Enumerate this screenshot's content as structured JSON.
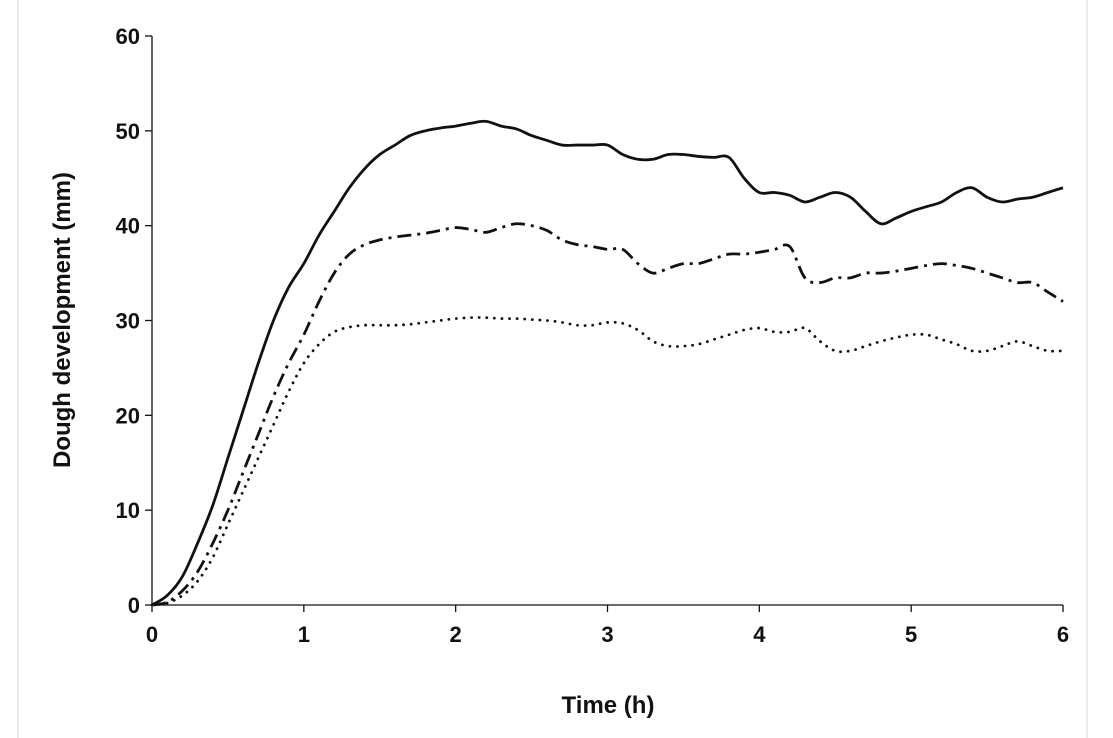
{
  "chart_data": {
    "type": "line",
    "title": "",
    "xlabel": "Time (h)",
    "ylabel": "Dough development (mm)",
    "xlim": [
      0,
      6
    ],
    "ylim": [
      0,
      60
    ],
    "x_ticks": [
      0,
      1,
      2,
      3,
      4,
      5,
      6
    ],
    "y_ticks": [
      0,
      10,
      20,
      30,
      40,
      50,
      60
    ],
    "grid": false,
    "legend": "none",
    "series": [
      {
        "name": "solid",
        "style": "solid",
        "color": "#111111",
        "x": [
          0,
          0.1,
          0.2,
          0.3,
          0.4,
          0.5,
          0.6,
          0.7,
          0.8,
          0.9,
          1.0,
          1.1,
          1.2,
          1.3,
          1.4,
          1.5,
          1.6,
          1.7,
          1.8,
          1.9,
          2.0,
          2.1,
          2.2,
          2.3,
          2.4,
          2.5,
          2.6,
          2.7,
          2.8,
          2.9,
          3.0,
          3.1,
          3.2,
          3.3,
          3.4,
          3.5,
          3.6,
          3.7,
          3.8,
          3.9,
          4.0,
          4.1,
          4.2,
          4.3,
          4.4,
          4.5,
          4.6,
          4.7,
          4.8,
          4.9,
          5.0,
          5.1,
          5.2,
          5.3,
          5.4,
          5.5,
          5.6,
          5.7,
          5.8,
          5.9,
          6.0
        ],
        "y": [
          0,
          1.0,
          3.0,
          6.5,
          10.5,
          15.5,
          20.5,
          25.5,
          30.0,
          33.5,
          36.0,
          39.0,
          41.5,
          44.0,
          46.0,
          47.5,
          48.5,
          49.5,
          50.0,
          50.3,
          50.5,
          50.8,
          51.0,
          50.5,
          50.2,
          49.5,
          49.0,
          48.5,
          48.5,
          48.5,
          48.5,
          47.5,
          47.0,
          47.0,
          47.5,
          47.5,
          47.3,
          47.2,
          47.2,
          45.0,
          43.5,
          43.5,
          43.2,
          42.5,
          43.0,
          43.5,
          43.0,
          41.5,
          40.2,
          40.8,
          41.5,
          42.0,
          42.5,
          43.5,
          44.0,
          43.0,
          42.5,
          42.8,
          43.0,
          43.5,
          44.0
        ]
      },
      {
        "name": "dash-dot",
        "style": "dash-dot",
        "color": "#111111",
        "x": [
          0,
          0.1,
          0.2,
          0.3,
          0.4,
          0.5,
          0.6,
          0.7,
          0.8,
          0.9,
          1.0,
          1.1,
          1.2,
          1.3,
          1.4,
          1.5,
          1.6,
          1.7,
          1.8,
          1.9,
          2.0,
          2.1,
          2.2,
          2.3,
          2.4,
          2.5,
          2.6,
          2.7,
          2.8,
          2.9,
          3.0,
          3.1,
          3.2,
          3.3,
          3.4,
          3.5,
          3.6,
          3.7,
          3.8,
          3.9,
          4.0,
          4.1,
          4.2,
          4.3,
          4.4,
          4.5,
          4.6,
          4.7,
          4.8,
          4.9,
          5.0,
          5.1,
          5.2,
          5.3,
          5.4,
          5.5,
          5.6,
          5.7,
          5.8,
          5.9,
          6.0
        ],
        "y": [
          0,
          0.3,
          1.5,
          3.5,
          6.5,
          10.0,
          14.0,
          18.0,
          22.0,
          25.5,
          28.5,
          32.0,
          35.0,
          37.0,
          38.0,
          38.5,
          38.8,
          39.0,
          39.2,
          39.5,
          39.8,
          39.6,
          39.3,
          39.8,
          40.2,
          40.0,
          39.5,
          38.5,
          38.0,
          37.8,
          37.5,
          37.5,
          36.0,
          35.0,
          35.5,
          36.0,
          36.0,
          36.5,
          37.0,
          37.0,
          37.2,
          37.5,
          37.8,
          34.5,
          34.0,
          34.5,
          34.5,
          35.0,
          35.0,
          35.2,
          35.5,
          35.8,
          36.0,
          35.8,
          35.5,
          35.0,
          34.5,
          34.0,
          34.0,
          33.0,
          32.0
        ]
      },
      {
        "name": "dotted",
        "style": "dotted",
        "color": "#111111",
        "x": [
          0,
          0.1,
          0.2,
          0.3,
          0.4,
          0.5,
          0.6,
          0.7,
          0.8,
          0.9,
          1.0,
          1.1,
          1.2,
          1.3,
          1.4,
          1.5,
          1.6,
          1.7,
          1.8,
          1.9,
          2.0,
          2.1,
          2.2,
          2.3,
          2.4,
          2.5,
          2.6,
          2.7,
          2.8,
          2.9,
          3.0,
          3.1,
          3.2,
          3.3,
          3.4,
          3.5,
          3.6,
          3.7,
          3.8,
          3.9,
          4.0,
          4.1,
          4.2,
          4.3,
          4.4,
          4.5,
          4.6,
          4.7,
          4.8,
          4.9,
          5.0,
          5.1,
          5.2,
          5.3,
          5.4,
          5.5,
          5.6,
          5.7,
          5.8,
          5.9,
          6.0
        ],
        "y": [
          0,
          0.2,
          1.0,
          2.5,
          5.0,
          8.5,
          12.0,
          15.5,
          19.0,
          22.5,
          25.5,
          27.5,
          28.8,
          29.3,
          29.5,
          29.5,
          29.5,
          29.6,
          29.8,
          30.0,
          30.2,
          30.3,
          30.3,
          30.2,
          30.2,
          30.1,
          30.0,
          29.8,
          29.5,
          29.5,
          29.8,
          29.7,
          29.0,
          27.8,
          27.3,
          27.3,
          27.5,
          28.0,
          28.5,
          29.0,
          29.2,
          28.8,
          28.8,
          29.2,
          27.8,
          26.8,
          26.8,
          27.3,
          27.8,
          28.2,
          28.5,
          28.5,
          28.0,
          27.5,
          26.8,
          26.8,
          27.3,
          27.8,
          27.3,
          26.8,
          26.8
        ]
      }
    ]
  }
}
